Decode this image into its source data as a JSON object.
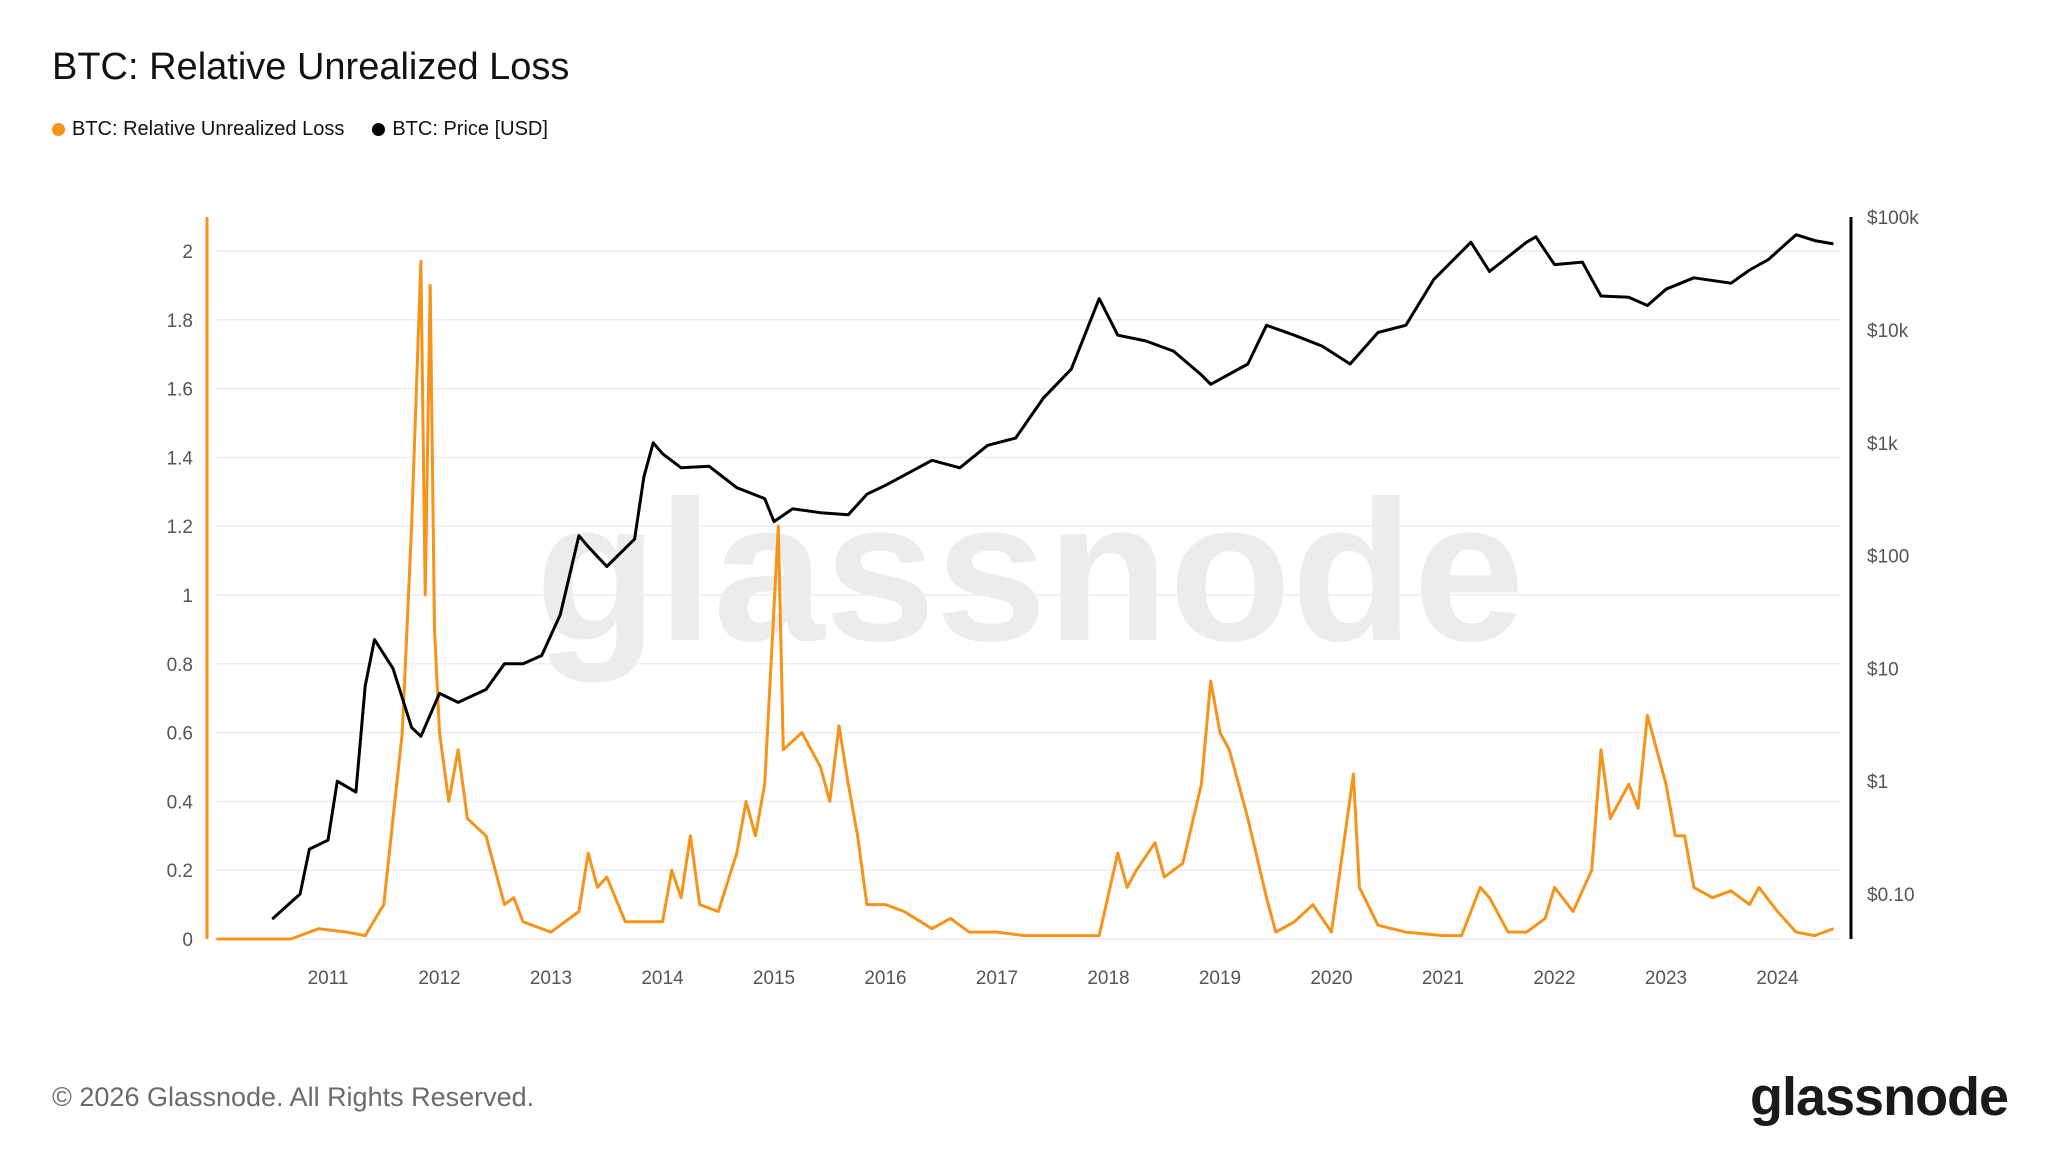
{
  "title": "BTC: Relative Unrealized Loss",
  "legend": [
    {
      "label": "BTC: Relative Unrealized Loss",
      "color": "#f7931a"
    },
    {
      "label": "BTC: Price [USD]",
      "color": "#000000"
    }
  ],
  "watermark": "glassnode",
  "footer": "© 2026 Glassnode. All Rights Reserved.",
  "logo": "glassnode",
  "chart_data": {
    "type": "line",
    "title": "BTC: Relative Unrealized Loss",
    "grid": true,
    "legend_position": "top-left",
    "x_ticks": [
      "2011",
      "2012",
      "2013",
      "2014",
      "2015",
      "2016",
      "2017",
      "2018",
      "2019",
      "2020",
      "2021",
      "2022",
      "2023",
      "2024"
    ],
    "y_left": {
      "ticks": [
        "0",
        "0.2",
        "0.4",
        "0.6",
        "0.8",
        "1",
        "1.2",
        "1.4",
        "1.6",
        "1.8",
        "2"
      ],
      "range": [
        0,
        2.1
      ],
      "scale": "linear"
    },
    "y_right": {
      "ticks": [
        "$0.10",
        "$1",
        "$10",
        "$100",
        "$1k",
        "$10k",
        "$100k"
      ],
      "tick_values": [
        0.1,
        1,
        10,
        100,
        1000,
        10000,
        100000
      ],
      "range": [
        0.03,
        100000
      ],
      "scale": "log"
    },
    "series": [
      {
        "name": "BTC: Relative Unrealized Loss",
        "axis": "left",
        "color": "#f7931a",
        "x": [
          "2010-01",
          "2010-06",
          "2010-09",
          "2010-10",
          "2010-12",
          "2011-03",
          "2011-05",
          "2011-07",
          "2011-08",
          "2011-09",
          "2011-10",
          "2011-11-01",
          "2011-11-15",
          "2011-12-01",
          "2011-12-15",
          "2012-01",
          "2012-02",
          "2012-03",
          "2012-04",
          "2012-06",
          "2012-08",
          "2012-09",
          "2012-10",
          "2013-01",
          "2013-04",
          "2013-05",
          "2013-06",
          "2013-07",
          "2013-09",
          "2014-01",
          "2014-02",
          "2014-03",
          "2014-04",
          "2014-05",
          "2014-07",
          "2014-09",
          "2014-10",
          "2014-11",
          "2014-12",
          "2015-01-15",
          "2015-02",
          "2015-04",
          "2015-06",
          "2015-07",
          "2015-08",
          "2015-09",
          "2015-10",
          "2015-11",
          "2016-01",
          "2016-03",
          "2016-06",
          "2016-08",
          "2016-10",
          "2017-01",
          "2017-04",
          "2017-09",
          "2017-12",
          "2018-02",
          "2018-03",
          "2018-04",
          "2018-06",
          "2018-07",
          "2018-09",
          "2018-11",
          "2018-12",
          "2019-01",
          "2019-02",
          "2019-04",
          "2019-06",
          "2019-07",
          "2019-09",
          "2019-11",
          "2020-01",
          "2020-03-12",
          "2020-04",
          "2020-06",
          "2020-09",
          "2021-01",
          "2021-03",
          "2021-05",
          "2021-06",
          "2021-08",
          "2021-10",
          "2021-12",
          "2022-01",
          "2022-03",
          "2022-05",
          "2022-06",
          "2022-07",
          "2022-08",
          "2022-09",
          "2022-10",
          "2022-11",
          "2022-12",
          "2023-01",
          "2023-02",
          "2023-03",
          "2023-04",
          "2023-06",
          "2023-08",
          "2023-10",
          "2023-11",
          "2024-01",
          "2024-03",
          "2024-05",
          "2024-07"
        ],
        "values": [
          0,
          0,
          0,
          0.01,
          0.03,
          0.02,
          0.01,
          0.1,
          0.35,
          0.6,
          1.2,
          1.97,
          1.0,
          1.9,
          0.9,
          0.6,
          0.4,
          0.55,
          0.35,
          0.3,
          0.1,
          0.12,
          0.05,
          0.02,
          0.08,
          0.25,
          0.15,
          0.18,
          0.05,
          0.05,
          0.2,
          0.12,
          0.3,
          0.1,
          0.08,
          0.25,
          0.4,
          0.3,
          0.45,
          1.2,
          0.55,
          0.6,
          0.5,
          0.4,
          0.62,
          0.45,
          0.3,
          0.1,
          0.1,
          0.08,
          0.03,
          0.06,
          0.02,
          0.02,
          0.01,
          0.01,
          0.01,
          0.25,
          0.15,
          0.2,
          0.28,
          0.18,
          0.22,
          0.45,
          0.75,
          0.6,
          0.55,
          0.35,
          0.12,
          0.02,
          0.05,
          0.1,
          0.02,
          0.48,
          0.15,
          0.04,
          0.02,
          0.01,
          0.01,
          0.15,
          0.12,
          0.02,
          0.02,
          0.06,
          0.15,
          0.08,
          0.2,
          0.55,
          0.35,
          0.4,
          0.45,
          0.38,
          0.65,
          0.55,
          0.45,
          0.3,
          0.3,
          0.15,
          0.12,
          0.14,
          0.1,
          0.15,
          0.08,
          0.02,
          0.01,
          0.03
        ]
      },
      {
        "name": "BTC: Price [USD]",
        "axis": "right",
        "color": "#000000",
        "x": [
          "2010-07",
          "2010-10",
          "2010-11",
          "2011-01",
          "2011-02",
          "2011-04",
          "2011-05",
          "2011-06",
          "2011-08",
          "2011-10",
          "2011-11",
          "2012-01",
          "2012-03",
          "2012-06",
          "2012-08",
          "2012-10",
          "2012-12",
          "2013-02",
          "2013-04",
          "2013-05",
          "2013-07",
          "2013-10",
          "2013-11",
          "2013-12",
          "2014-01",
          "2014-03",
          "2014-06",
          "2014-09",
          "2014-12",
          "2015-01",
          "2015-03",
          "2015-06",
          "2015-09",
          "2015-11",
          "2016-01",
          "2016-06",
          "2016-09",
          "2016-12",
          "2017-03",
          "2017-06",
          "2017-09",
          "2017-12",
          "2018-02",
          "2018-05",
          "2018-08",
          "2018-11",
          "2018-12",
          "2019-04",
          "2019-06",
          "2019-09",
          "2019-12",
          "2020-03",
          "2020-06",
          "2020-09",
          "2020-12",
          "2021-04",
          "2021-06",
          "2021-10",
          "2021-11",
          "2022-01",
          "2022-04",
          "2022-06",
          "2022-09",
          "2022-11",
          "2023-01",
          "2023-04",
          "2023-08",
          "2023-10",
          "2023-12",
          "2024-03",
          "2024-05",
          "2024-07"
        ],
        "values": [
          0.06,
          0.1,
          0.25,
          0.3,
          1,
          0.8,
          7,
          18,
          10,
          3,
          2.5,
          6,
          5,
          6.5,
          11,
          11,
          13,
          30,
          150,
          120,
          80,
          140,
          500,
          1000,
          800,
          600,
          620,
          400,
          320,
          200,
          260,
          240,
          230,
          350,
          420,
          700,
          600,
          950,
          1100,
          2500,
          4500,
          19000,
          9000,
          8000,
          6500,
          4000,
          3300,
          5000,
          11000,
          9000,
          7200,
          5000,
          9500,
          11000,
          28000,
          60000,
          33000,
          60000,
          67000,
          38000,
          40000,
          20000,
          19500,
          16500,
          23000,
          29000,
          26000,
          34000,
          42000,
          70000,
          62000,
          58000
        ]
      }
    ]
  }
}
